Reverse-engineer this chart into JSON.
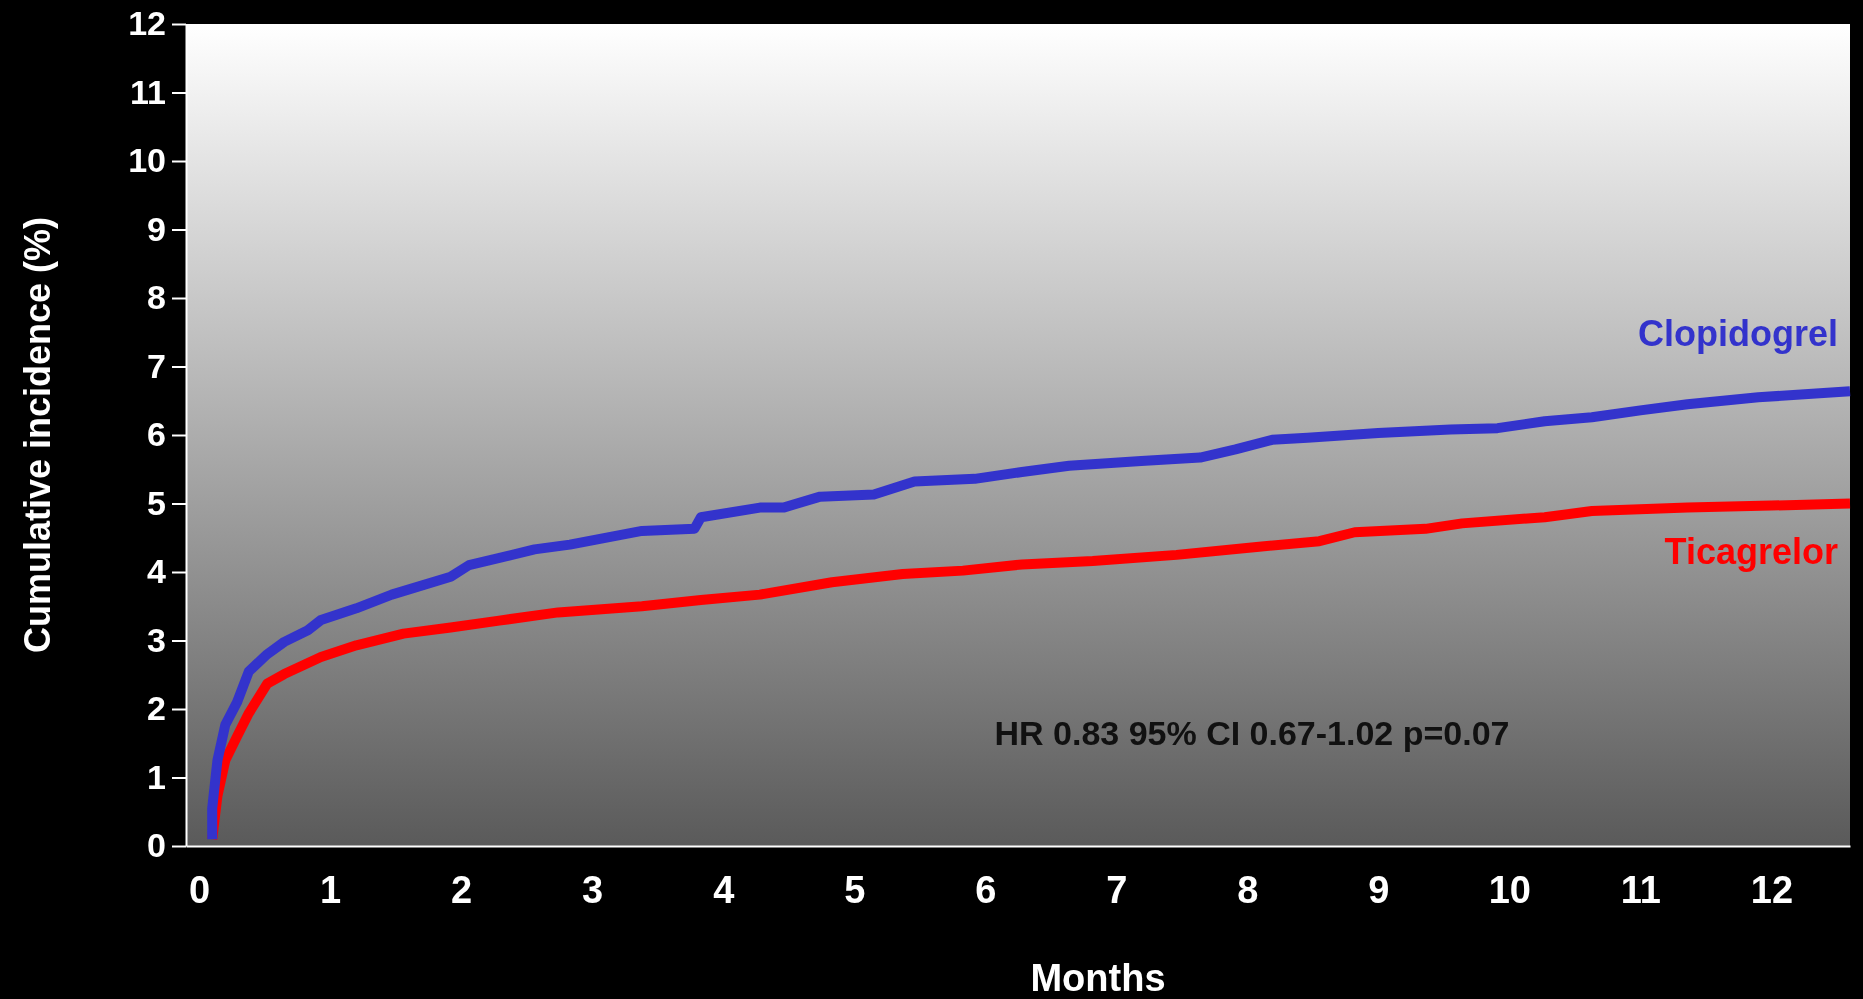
{
  "chart_data": {
    "type": "line",
    "xlabel": "Months",
    "ylabel": "Cumulative incidence (%)",
    "xlim": [
      -0.1,
      12.6
    ],
    "xticks": [
      0,
      1,
      2,
      3,
      4,
      5,
      6,
      7,
      8,
      9,
      10,
      11,
      12
    ],
    "ylim": [
      0,
      12
    ],
    "yticks": [
      0,
      1,
      2,
      3,
      4,
      5,
      6,
      7,
      8,
      9,
      10,
      11,
      12
    ],
    "grid": false,
    "legend": false,
    "marker": "none",
    "line_style": "solid",
    "annotations": [
      "HR 0.83 95% CI 0.67-1.02 p=0.07"
    ],
    "series": [
      {
        "name": "Ticagrelor",
        "color": "#ff0000",
        "x": [
          0.1,
          0.14,
          0.2,
          0.29,
          0.38,
          0.52,
          0.65,
          0.93,
          1.2,
          1.56,
          1.92,
          2.29,
          2.74,
          3.38,
          3.83,
          4.28,
          4.83,
          5.37,
          5.83,
          6.28,
          6.82,
          7.46,
          8.09,
          8.55,
          8.82,
          9.36,
          9.64,
          10.27,
          10.63,
          11.36,
          12.0,
          12.6
        ],
        "values": [
          0.1,
          0.73,
          1.25,
          1.6,
          1.94,
          2.37,
          2.51,
          2.76,
          2.93,
          3.1,
          3.19,
          3.29,
          3.41,
          3.5,
          3.59,
          3.67,
          3.85,
          3.97,
          4.02,
          4.11,
          4.16,
          4.25,
          4.37,
          4.45,
          4.58,
          4.63,
          4.71,
          4.8,
          4.89,
          4.94,
          4.97,
          5.0
        ]
      },
      {
        "name": "Clopidogrel",
        "color": "#3333cc",
        "x": [
          0.1,
          0.1,
          0.14,
          0.2,
          0.29,
          0.38,
          0.52,
          0.65,
          0.83,
          0.93,
          1.2,
          1.47,
          1.92,
          2.06,
          2.56,
          2.83,
          3.38,
          3.78,
          3.83,
          4.28,
          4.46,
          4.74,
          5.15,
          5.46,
          5.92,
          6.28,
          6.64,
          7.19,
          7.64,
          7.91,
          8.19,
          8.46,
          9.0,
          9.55,
          9.91,
          10.27,
          10.63,
          11.0,
          11.36,
          11.9,
          12.6
        ],
        "values": [
          0.1,
          0.55,
          1.25,
          1.77,
          2.1,
          2.55,
          2.8,
          2.98,
          3.15,
          3.3,
          3.47,
          3.67,
          3.93,
          4.1,
          4.33,
          4.4,
          4.6,
          4.63,
          4.8,
          4.94,
          4.94,
          5.1,
          5.13,
          5.32,
          5.36,
          5.46,
          5.55,
          5.62,
          5.67,
          5.79,
          5.93,
          5.96,
          6.03,
          6.08,
          6.1,
          6.2,
          6.26,
          6.36,
          6.45,
          6.55,
          6.64
        ]
      }
    ]
  }
}
